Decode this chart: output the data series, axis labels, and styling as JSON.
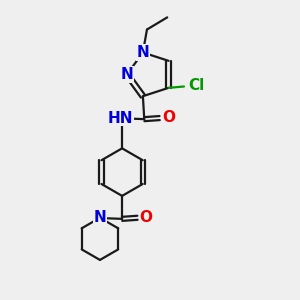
{
  "bg_color": "#efefef",
  "bond_color": "#1a1a1a",
  "N_color": "#0000dd",
  "O_color": "#ee0000",
  "Cl_color": "#009900",
  "line_width": 1.6,
  "font_size": 11,
  "fig_size": [
    3.0,
    3.0
  ],
  "dpi": 100,
  "xlim": [
    -2.5,
    5.5
  ],
  "ylim": [
    -6.5,
    4.5
  ]
}
